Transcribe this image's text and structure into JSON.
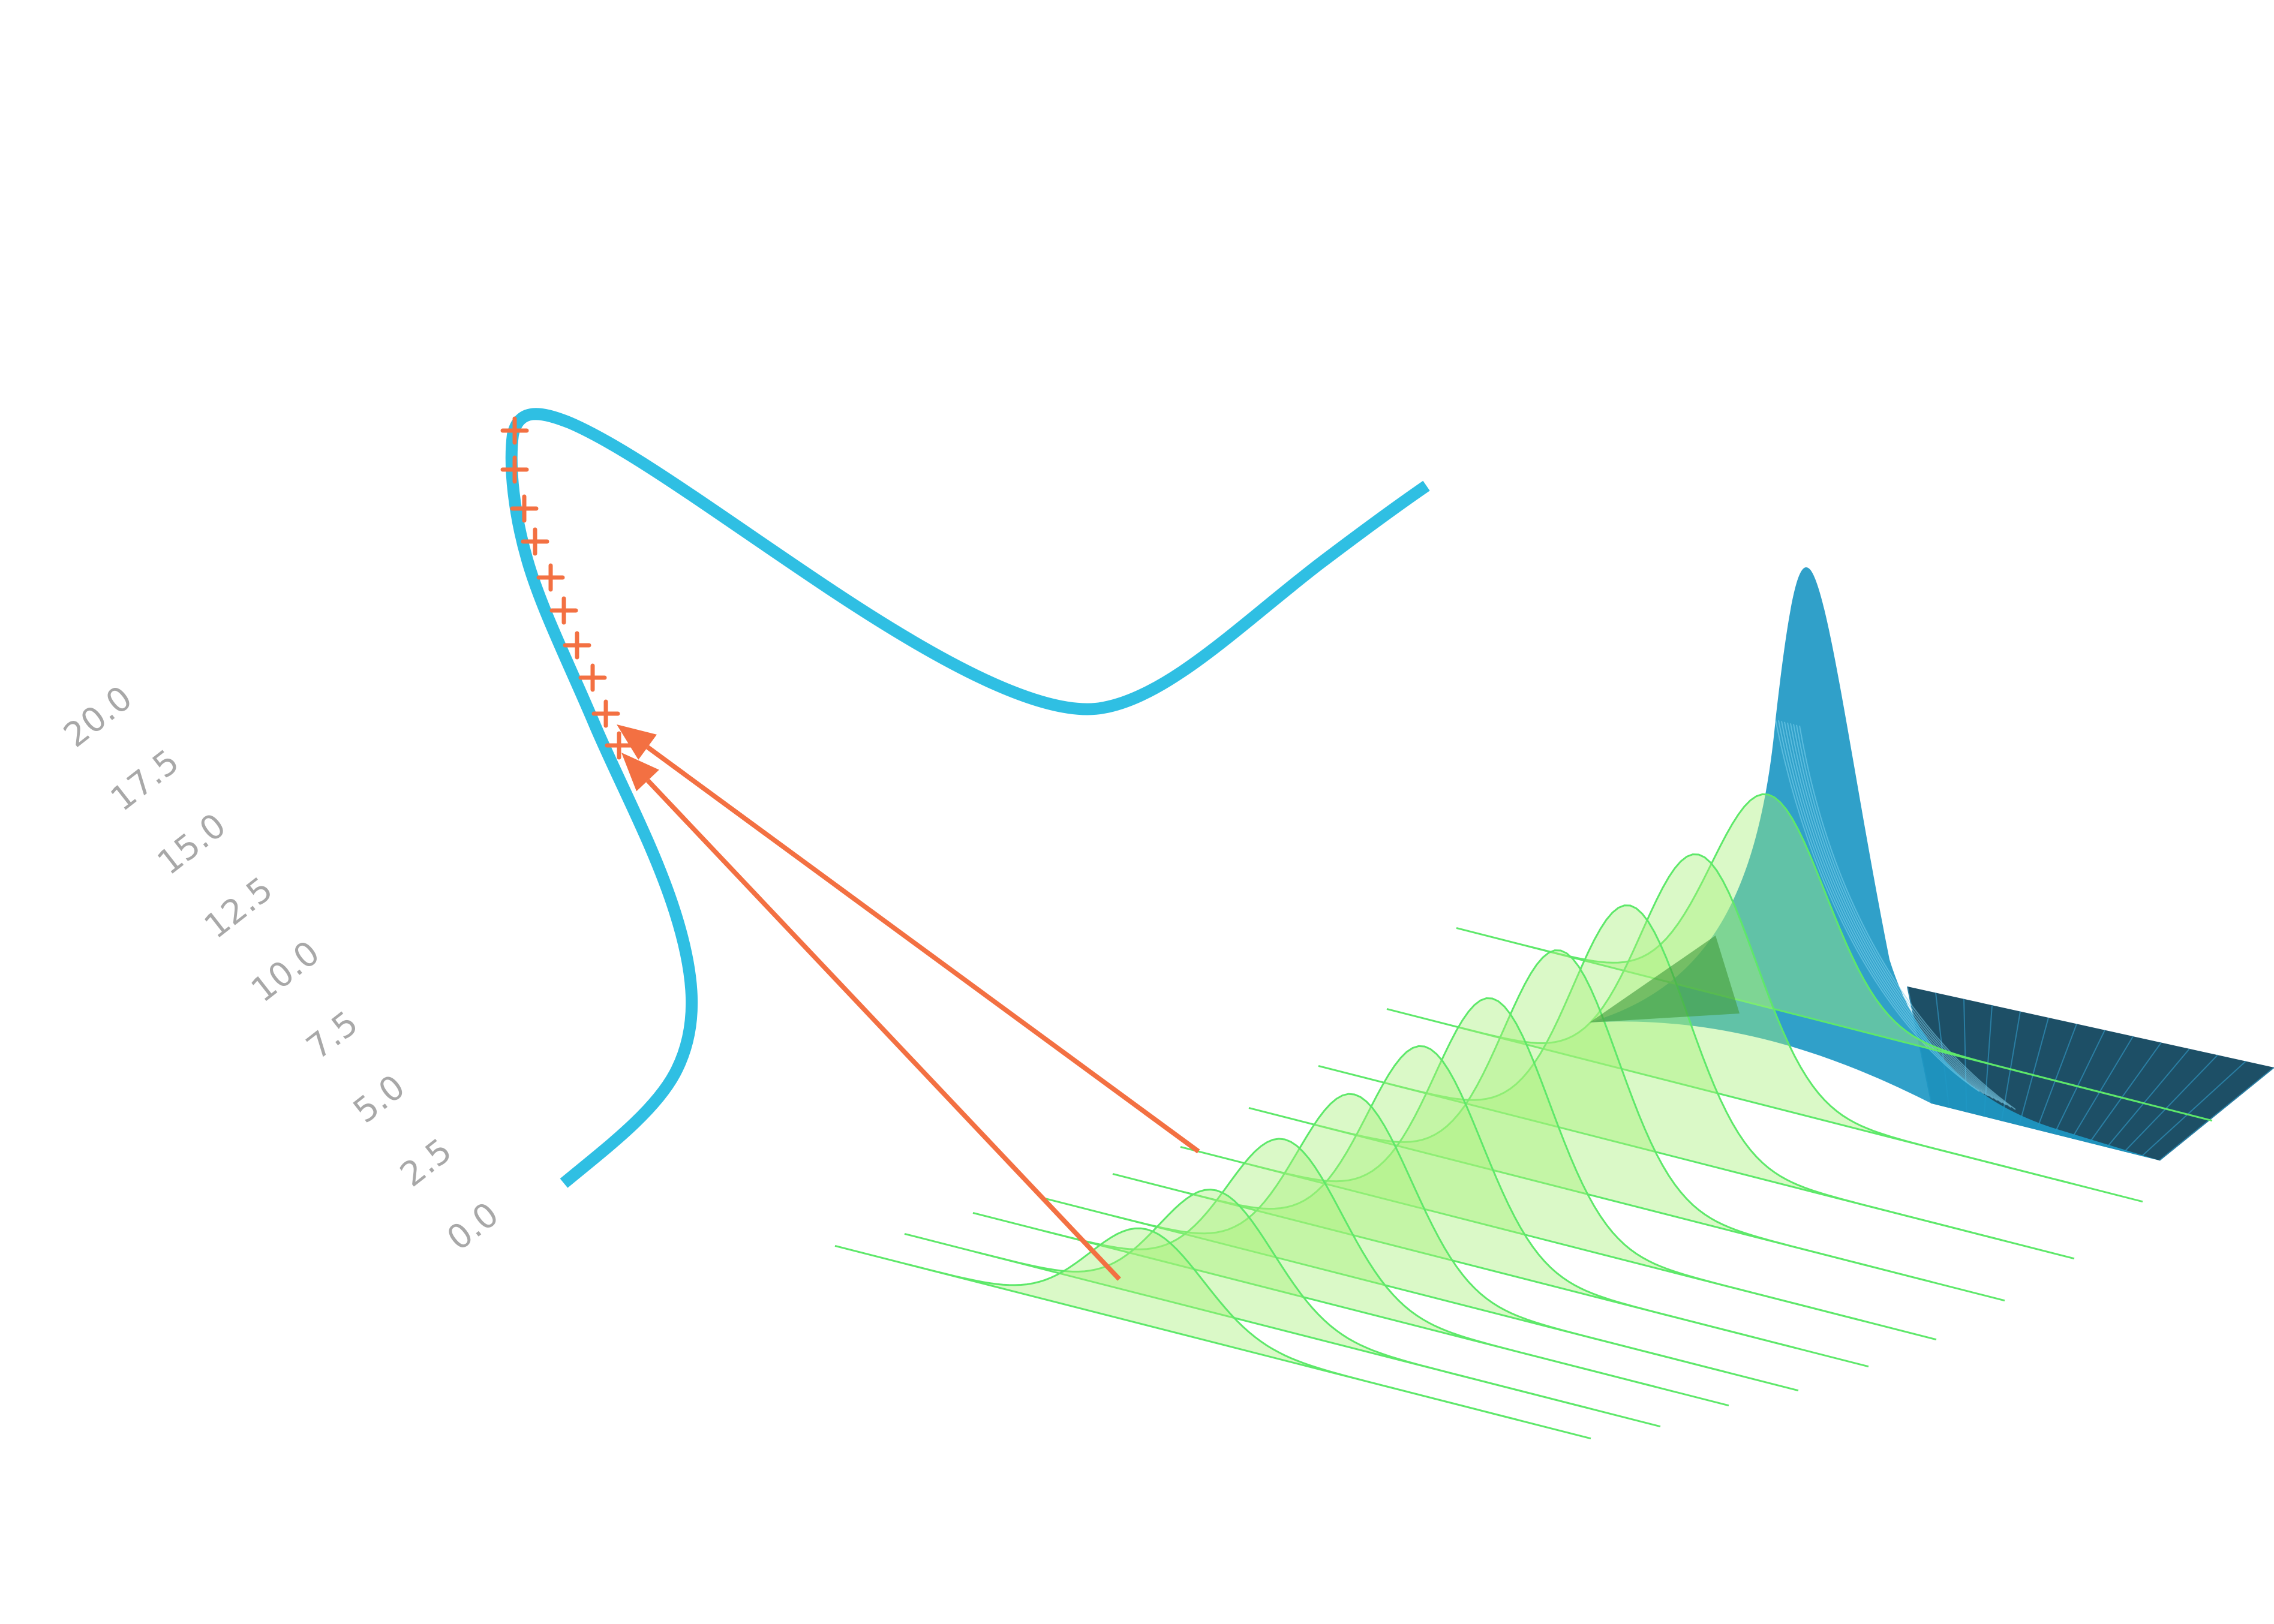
{
  "figure": {
    "colors": {
      "curve": "#2fbfe3",
      "markers": "#f37042",
      "arrows": "#f37042",
      "ridge_fill": "#a6f07a",
      "ridge_stroke": "#5ee86a",
      "surface": "#1e98c4",
      "surface_dark": "#1d4f66",
      "tick_text": "#a8a8a8"
    },
    "axis": {
      "ticks": [
        "0.0",
        "2.5",
        "5.0",
        "7.5",
        "10.0",
        "12.5",
        "15.0",
        "17.5",
        "20.0"
      ]
    },
    "ridge_count": 10,
    "marker_count": 10,
    "arrow_count": 2
  }
}
